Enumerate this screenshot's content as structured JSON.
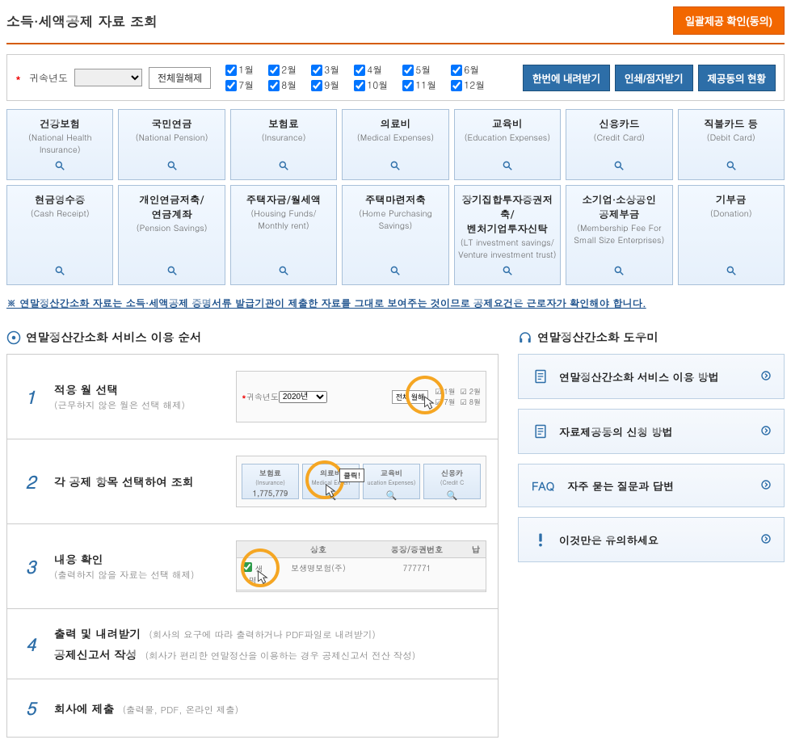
{
  "header": {
    "title": "소득·세액공제 자료 조회",
    "consent_button": "일괄제공 확인(동의)"
  },
  "filter": {
    "year_label": "귀속년도",
    "clear_all": "전체월해제",
    "months": [
      "1월",
      "2월",
      "3월",
      "4월",
      "5월",
      "6월",
      "7월",
      "8월",
      "9월",
      "10월",
      "11월",
      "12월"
    ]
  },
  "actions": {
    "download_all": "한번에 내려받기",
    "print": "인쇄/점자받기",
    "consent_status": "제공동의 현황"
  },
  "categories_row1": [
    {
      "kr": "건강보험",
      "en": "(National Health Insurance)"
    },
    {
      "kr": "국민연금",
      "en": "(National Pension)"
    },
    {
      "kr": "보험료",
      "en": "(Insurance)"
    },
    {
      "kr": "의료비",
      "en": "(Medical Expenses)"
    },
    {
      "kr": "교육비",
      "en": "(Education Expenses)"
    },
    {
      "kr": "신용카드",
      "en": "(Credit Card)"
    },
    {
      "kr": "직불카드 등",
      "en": "(Debit Card)"
    }
  ],
  "categories_row2": [
    {
      "kr": "현금영수증",
      "en": "(Cash Receipt)"
    },
    {
      "kr": "개인연금저축/\n연금계좌",
      "en": "(Pension Savings)"
    },
    {
      "kr": "주택자금/월세액",
      "en": "(Housing Funds/\nMonthly rent)"
    },
    {
      "kr": "주택마련저축",
      "en": "(Home Purchasing Savings)"
    },
    {
      "kr": "장기집합투자증권저축/\n벤처기업투자신탁",
      "en": "(LT investment savings/\nVenture investment trust)"
    },
    {
      "kr": "소기업·소상공인\n공제부금",
      "en": "(Membership Fee For Small Size Enterprises)"
    },
    {
      "kr": "기부금",
      "en": "(Donation)"
    }
  ],
  "notice": "※ 연말정산간소화 자료는 소득·세액공제 증명서류 발급기관이 제출한 자료를 그대로 보여주는 것이므로 공제요건은 근로자가 확인해야 합니다.",
  "section_left_title": "연말정산간소화 서비스 이용 순서",
  "section_right_title": "연말정산간소화 도우미",
  "steps": [
    {
      "num": "1",
      "title": "적용 월 선택",
      "sub": "(근무하지 않은 월은 선택 해제)",
      "preview": {
        "type": "months",
        "year_label": "귀속년도",
        "year": "2020년",
        "clear": "전체 월해",
        "m1": "1월",
        "m2": "2월",
        "m7": "7월",
        "m8": "8월"
      }
    },
    {
      "num": "2",
      "title": "각 공제 항목 선택하여 조회",
      "preview": {
        "type": "cards",
        "click_label": "클릭!",
        "cards": [
          {
            "kr": "보험료",
            "en": "(Insurance)",
            "amt": "1,775,779"
          },
          {
            "kr": "의료비",
            "en": "Medical Expen"
          },
          {
            "kr": "교육비",
            "en": "ucation Expenses)"
          },
          {
            "kr": "신용카",
            "en": "(Credit C"
          }
        ]
      }
    },
    {
      "num": "3",
      "title": "내용 확인",
      "sub": "(출력하지 않을 자료는 선택 해제)",
      "preview": {
        "type": "check",
        "col1": "상호",
        "col2": "통장/증권번호",
        "col3": "납",
        "company": "보생명보험(주)",
        "chk_label": "생명",
        "num": "777771"
      }
    },
    {
      "num": "4",
      "line1_title": "출력 및 내려받기",
      "line1_sub": "(회사의 요구에 따라 출력하거나 PDF파일로 내려받기)",
      "line2_title": "공제신고서 작성",
      "line2_sub": "(회사가 편리한 연말정산을 이용하는 경우 공제신고서 전산 작성)"
    },
    {
      "num": "5",
      "title": "회사에 제출",
      "inline_sub": "(출력물, PDF, 온라인 제출)"
    }
  ],
  "help": [
    {
      "icon": "doc",
      "label": "연말정산간소화 서비스 이용 방법"
    },
    {
      "icon": "doc",
      "label": "자료제공동의 신청 방법"
    },
    {
      "icon": "faq",
      "faq_prefix": "FAQ",
      "label": "자주 묻는 질문과 답변"
    },
    {
      "icon": "warn",
      "label": "이것만은 유의하세요"
    }
  ],
  "colors": {
    "orange": "#f26700",
    "blue": "#2d6ea8",
    "ring": "#f5a623",
    "link": "#1a4f8b",
    "card_border": "#a8c0d9"
  }
}
